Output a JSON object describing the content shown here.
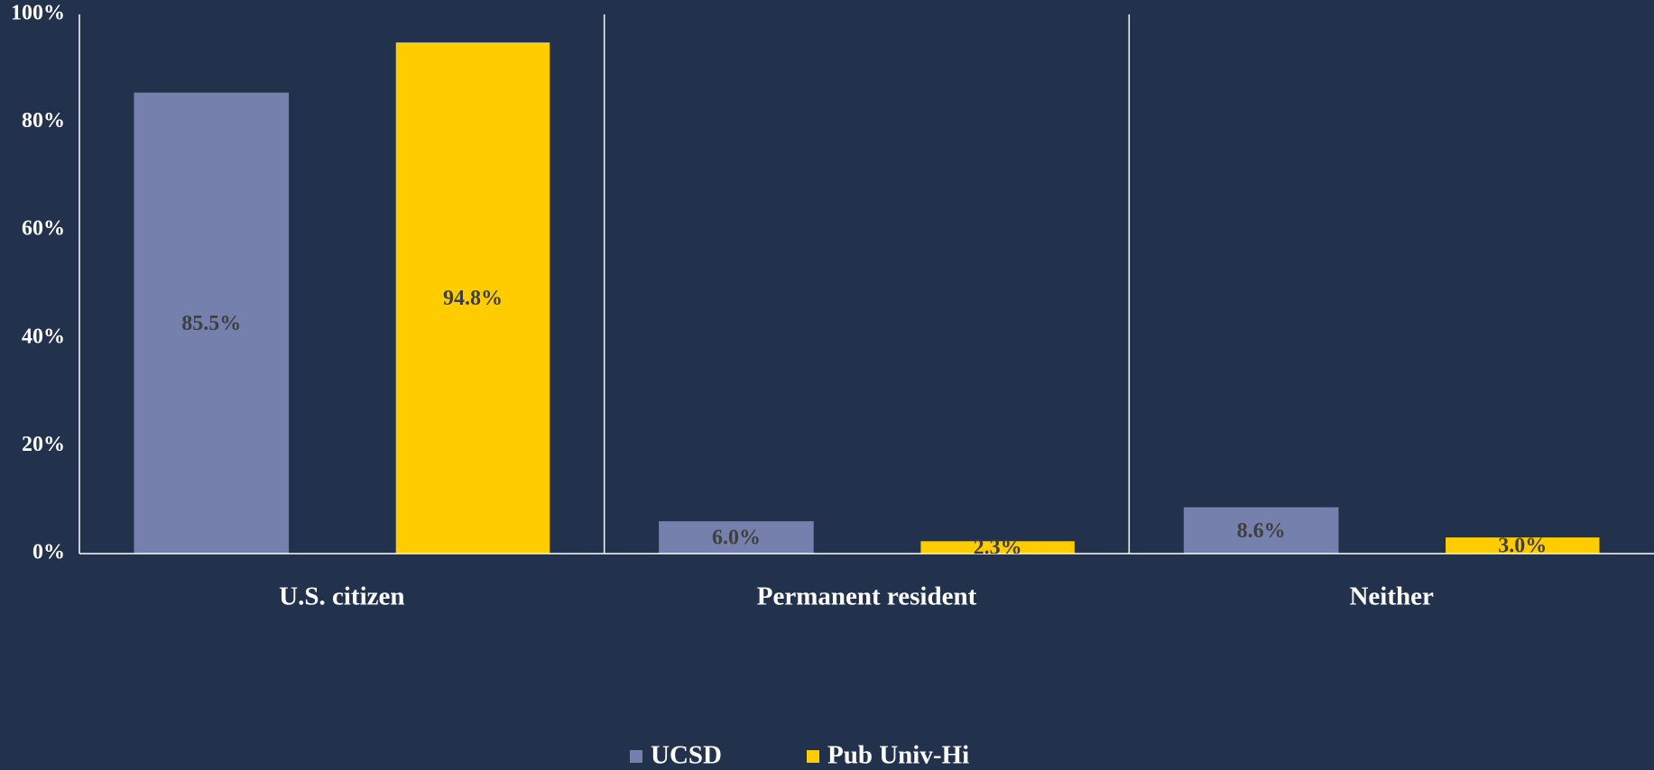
{
  "chart_data": {
    "type": "bar",
    "categories": [
      "U.S. citizen",
      "Permanent resident",
      "Neither"
    ],
    "series": [
      {
        "name": "UCSD",
        "color": "#7580ac",
        "values": [
          85.5,
          6.0,
          8.6
        ],
        "value_labels": [
          "85.5%",
          "6.0%",
          "8.6%"
        ]
      },
      {
        "name": "Pub Univ-Hi",
        "color": "#ffcc00",
        "values": [
          94.8,
          2.3,
          3.0
        ],
        "value_labels": [
          "94.8%",
          "2.3%",
          "3.0%"
        ]
      }
    ],
    "ylim": [
      0,
      100
    ],
    "yticks": [
      {
        "value": 0,
        "label": "0%"
      },
      {
        "value": 20,
        "label": "20%"
      },
      {
        "value": 40,
        "label": "40%"
      },
      {
        "value": 60,
        "label": "60%"
      },
      {
        "value": 80,
        "label": "80%"
      },
      {
        "value": 100,
        "label": "100%"
      }
    ],
    "grid": false,
    "legend": "bottom"
  }
}
